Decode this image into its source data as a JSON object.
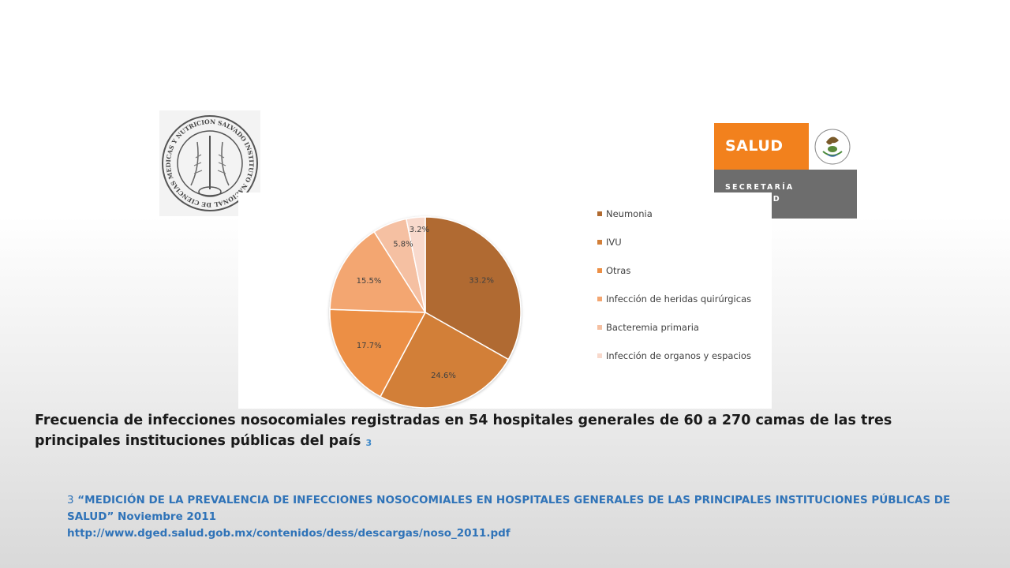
{
  "chart_data": {
    "type": "pie",
    "title": "",
    "slices": [
      {
        "label": "Neumonia",
        "value": 33.2,
        "data_label": "33.2%",
        "color": "#b06a30"
      },
      {
        "label": "IVU",
        "value": 24.6,
        "data_label": "24.6%",
        "color": "#d27f39"
      },
      {
        "label": "Otras",
        "value": 17.7,
        "data_label": "17.7%",
        "color": "#ec8f45"
      },
      {
        "label": "Infección de heridas quirúrgicas",
        "value": 15.5,
        "data_label": "15.5%",
        "color": "#f3a671"
      },
      {
        "label": "Bacteremia primaria",
        "value": 5.8,
        "data_label": "5.8%",
        "color": "#f5c0a2"
      },
      {
        "label": "Infección de organos y espacios",
        "value": 3.2,
        "data_label": "3.2%",
        "color": "#f8d9cc"
      }
    ],
    "legend_position": "right"
  },
  "logos": {
    "salud_word": "SALUD",
    "salud_sub_line1": "SECRETARÍA",
    "salud_sub_line2": "DE SALUD",
    "seal_text": "INSTITUTO NACIONAL DE CIENCIAS MEDICAS Y NUTRICION SALVADOR ZUBIRAN"
  },
  "caption": {
    "text": "Frecuencia de infecciones nosocomiales registradas en  54 hospitales  generales de 60 a 270 camas de las tres principales instituciones públicas del país",
    "superscript": "3"
  },
  "reference": {
    "number": "3",
    "title": " “MEDICIÓN DE LA PREVALENCIA DE INFECCIONES NOSOCOMIALES EN HOSPITALES GENERALES DE LAS PRINCIPALES INSTITUCIONES PÚBLICAS DE SALUD” Noviembre 2011",
    "url": "http://www.dged.salud.gob.mx/contenidos/dess/descargas/noso_2011.pdf"
  }
}
